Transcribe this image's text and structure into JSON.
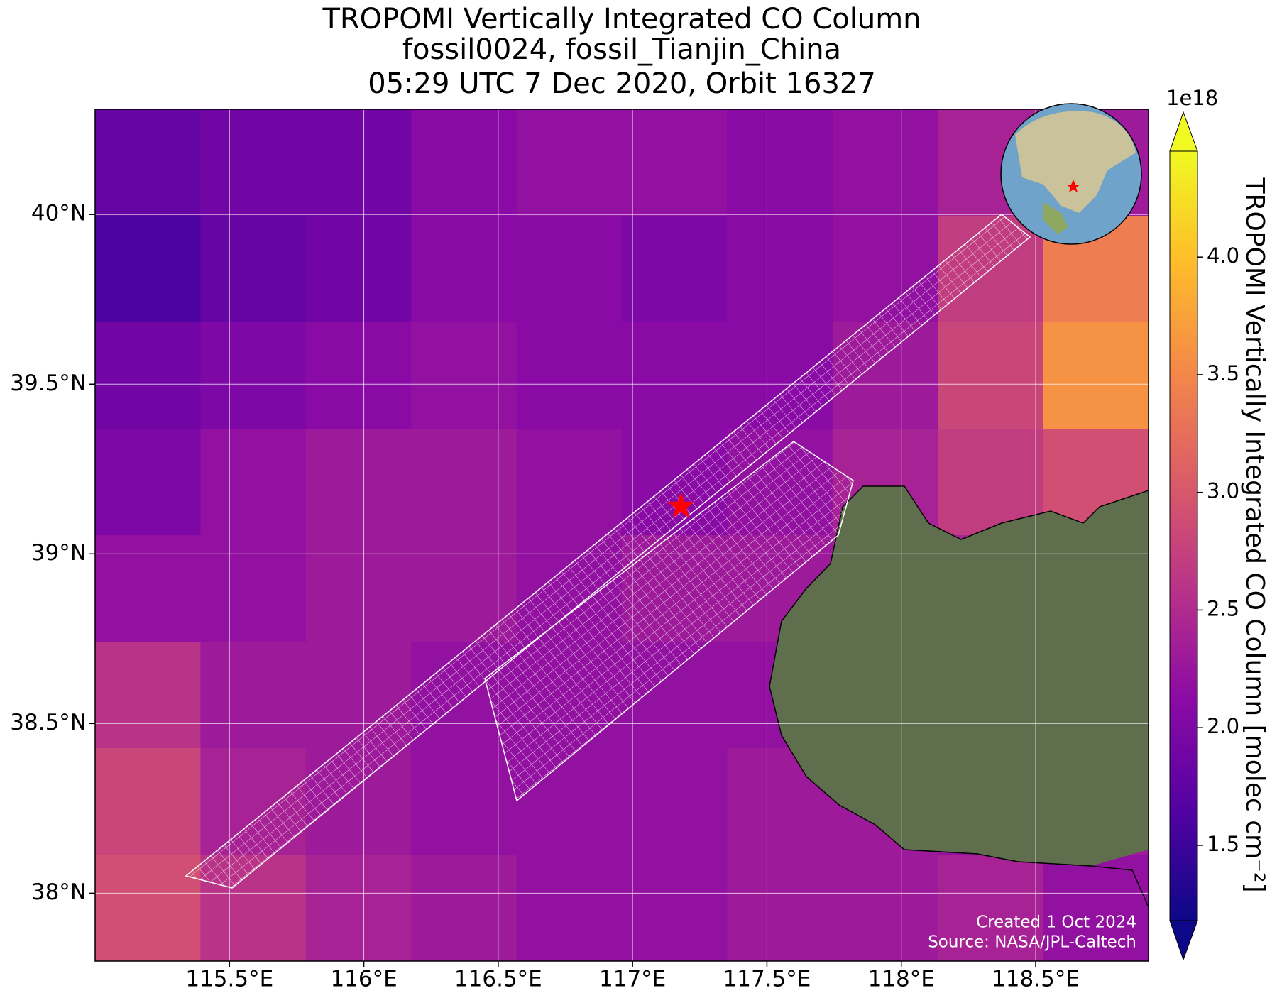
{
  "chart_data": {
    "type": "heatmap",
    "title": [
      "TROPOMI Vertically Integrated CO Column",
      "fossil0024, fossil_Tianjin_China",
      "05:29 UTC 7 Dec 2020, Orbit 16327"
    ],
    "xlim": [
      115.0,
      118.92
    ],
    "ylim": [
      37.8,
      40.31
    ],
    "xticks": [
      {
        "value": 115.5,
        "label": "115.5°E"
      },
      {
        "value": 116,
        "label": "116°E"
      },
      {
        "value": 116.5,
        "label": "116.5°E"
      },
      {
        "value": 117,
        "label": "117°E"
      },
      {
        "value": 117.5,
        "label": "117.5°E"
      },
      {
        "value": 118,
        "label": "118°E"
      },
      {
        "value": 118.5,
        "label": "118.5°E"
      }
    ],
    "yticks": [
      {
        "value": 38,
        "label": "38°N"
      },
      {
        "value": 38.5,
        "label": "38.5°N"
      },
      {
        "value": 39,
        "label": "39°N"
      },
      {
        "value": 39.5,
        "label": "39.5°N"
      },
      {
        "value": 40,
        "label": "40°N"
      }
    ],
    "grid": true,
    "colormap": "plasma",
    "colorbar": {
      "label": "TROPOMI Vertically Integrated CO Column [molec cm⁻²]",
      "offset_label": "1e18",
      "lim": [
        1.18,
        4.45
      ],
      "ticks": [
        1.5,
        {
          "value": 2,
          "label": "2.0"
        },
        2.5,
        {
          "value": 3,
          "label": "3.0"
        },
        3.5,
        {
          "value": 4,
          "label": "4.0"
        }
      ]
    },
    "field": [
      [
        1.8,
        1.9,
        1.9,
        2.1,
        2.2,
        2.2,
        2.1,
        2.2,
        2.4,
        2.3
      ],
      [
        1.6,
        1.8,
        1.9,
        2.1,
        2.1,
        2.0,
        2.1,
        2.2,
        2.7,
        3.4
      ],
      [
        1.9,
        2.0,
        2.1,
        2.2,
        2.1,
        2.1,
        2.1,
        2.3,
        2.8,
        3.6
      ],
      [
        2.0,
        2.2,
        2.3,
        2.3,
        2.2,
        2.1,
        2.2,
        2.4,
        2.7,
        2.9
      ],
      [
        2.2,
        2.2,
        2.3,
        2.3,
        2.2,
        2.3,
        2.3,
        2.4,
        2.4,
        2.3
      ],
      [
        2.6,
        2.3,
        2.3,
        2.2,
        2.2,
        2.2,
        2.2,
        2.2,
        2.2,
        2.2
      ],
      [
        2.8,
        2.4,
        2.3,
        2.2,
        2.2,
        2.2,
        2.3,
        2.3,
        2.2,
        2.3
      ],
      [
        2.9,
        2.6,
        2.4,
        2.3,
        2.2,
        2.2,
        2.3,
        2.3,
        2.4,
        2.2
      ]
    ],
    "site": {
      "lon": 117.18,
      "lat": 39.14,
      "color": "#ff0000"
    },
    "annotations": [
      "Created 1 Oct 2024",
      "Source: NASA/JPL-Caltech"
    ]
  }
}
